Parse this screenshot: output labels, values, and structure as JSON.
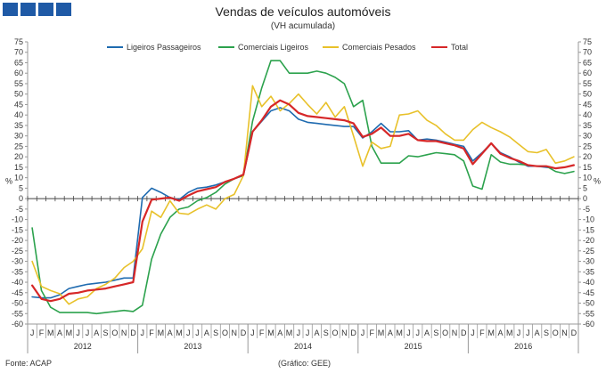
{
  "header": {
    "logo_color": "#1f5aa6"
  },
  "chart_data": {
    "type": "line",
    "title": "Vendas de veículos automóveis",
    "subtitle": "(VH acumulada)",
    "ylabel_left": "%",
    "ylabel_right": "%",
    "ylim": [
      -60,
      75
    ],
    "yticks": [
      -60,
      -55,
      -50,
      -45,
      -40,
      -35,
      -30,
      -25,
      -20,
      -15,
      -10,
      -5,
      0,
      5,
      10,
      15,
      20,
      25,
      30,
      35,
      40,
      45,
      50,
      55,
      60,
      65,
      70,
      75
    ],
    "month_labels": [
      "J",
      "F",
      "M",
      "A",
      "M",
      "J",
      "J",
      "A",
      "S",
      "O",
      "N",
      "D",
      "J",
      "F",
      "M",
      "A",
      "M",
      "J",
      "J",
      "A",
      "S",
      "O",
      "N",
      "D",
      "J",
      "F",
      "M",
      "A",
      "M",
      "J",
      "J",
      "A",
      "S",
      "O",
      "N",
      "D",
      "J",
      "F",
      "M",
      "A",
      "M",
      "J",
      "J",
      "A",
      "S",
      "O",
      "N",
      "D",
      "J",
      "F",
      "M",
      "A",
      "M",
      "J",
      "J",
      "A",
      "S",
      "O",
      "N",
      "D"
    ],
    "years": [
      "2012",
      "2013",
      "2014",
      "2015",
      "2016"
    ],
    "legend_position": "top",
    "grid": false,
    "series": [
      {
        "name": "Ligeiros Passageiros",
        "color": "#1f6bb0",
        "values": [
          -47,
          -47.5,
          -47.5,
          -46,
          -43,
          -42,
          -41,
          -40.5,
          -40,
          -39,
          -38,
          -38,
          0.5,
          5,
          3,
          0.5,
          -0.5,
          3,
          5,
          5.5,
          6.5,
          8,
          9.5,
          11,
          32,
          37,
          42,
          43.5,
          42,
          38,
          36.5,
          36,
          35.5,
          35,
          34.5,
          34.5,
          29,
          32,
          36,
          32,
          32,
          32.5,
          28,
          28.5,
          28,
          27,
          26,
          25,
          18,
          22,
          26.5,
          22,
          20,
          17.5,
          15.5,
          15.5,
          15,
          14.5,
          15,
          16
        ]
      },
      {
        "name": "Comerciais Ligeiros",
        "color": "#2ca24d",
        "values": [
          -14,
          -44,
          -52,
          -54.5,
          -54.5,
          -54.5,
          -54.5,
          -55,
          -54.5,
          -54,
          -53.5,
          -54,
          -51,
          -29,
          -17,
          -9,
          -5,
          -4,
          -1,
          0.5,
          3,
          7,
          9.5,
          11,
          37,
          53,
          66,
          66,
          60,
          60,
          60,
          61,
          60,
          58,
          55,
          44,
          47,
          25,
          17,
          17,
          17,
          20.5,
          20,
          21,
          22,
          21.5,
          21,
          18,
          6,
          4.5,
          21,
          17.5,
          16.5,
          16.5,
          16,
          15.5,
          15.5,
          13,
          12,
          13
        ]
      },
      {
        "name": "Comerciais Pesados",
        "color": "#e8c12a",
        "values": [
          -30,
          -42,
          -44,
          -45.5,
          -50.5,
          -48,
          -47,
          -43,
          -41,
          -38,
          -33,
          -30,
          -24,
          -6,
          -9,
          -1,
          -7,
          -7.5,
          -5,
          -3,
          -5,
          0,
          2,
          11,
          54,
          44,
          49,
          42,
          45.5,
          50,
          45,
          40.5,
          46,
          39,
          44,
          30,
          15.5,
          27,
          24,
          25,
          40,
          40.5,
          42,
          37.5,
          35,
          31,
          28,
          28,
          33,
          36.5,
          34,
          32,
          29.5,
          26,
          22.5,
          22,
          23.5,
          17,
          18,
          20
        ]
      },
      {
        "name": "Total",
        "color": "#d62728",
        "values": [
          -41.5,
          -48,
          -49,
          -48,
          -45.5,
          -45,
          -44,
          -43.5,
          -43,
          -42,
          -41,
          -40,
          -11,
          -0.5,
          0,
          0.5,
          -1,
          1.5,
          3.5,
          4.5,
          5.5,
          8,
          9.5,
          11.5,
          32,
          37.5,
          44,
          47,
          45,
          41,
          39.5,
          39,
          38.5,
          38,
          37.5,
          36,
          29.5,
          31,
          34,
          30,
          30,
          31,
          28,
          27.5,
          27.5,
          26.5,
          25.5,
          24,
          16.5,
          21.5,
          26.5,
          21.5,
          19.5,
          18,
          16,
          15.5,
          15.5,
          14.5,
          15,
          16
        ]
      }
    ]
  },
  "footer": {
    "source": "Fonte: ACAP",
    "credit": "(Gráfico: GEE)"
  }
}
